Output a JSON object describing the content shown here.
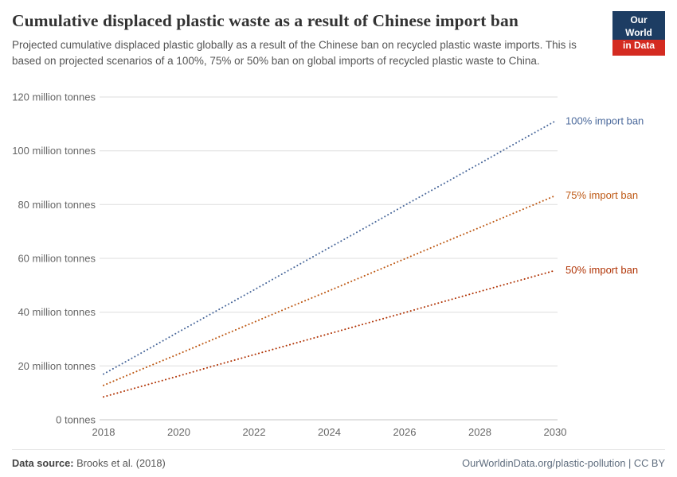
{
  "header": {
    "title": "Cumulative displaced plastic waste as a result of Chinese import ban",
    "subtitle": "Projected cumulative displaced plastic globally as a result of the Chinese ban on recycled plastic waste imports. This is based on projected scenarios of a 100%, 75% or 50% ban on global imports of recycled plastic waste to China.",
    "logo": {
      "line1": "Our World",
      "line2": "in Data",
      "bg_color": "#1d3d63",
      "accent_color": "#d42b21"
    }
  },
  "chart_data": {
    "type": "line",
    "title": "Cumulative displaced plastic waste as a result of Chinese import ban",
    "line_style": "dotted",
    "grid": true,
    "legend_position": "end-of-line-labels",
    "x": [
      2018,
      2019,
      2020,
      2021,
      2022,
      2023,
      2024,
      2025,
      2026,
      2027,
      2028,
      2029,
      2030
    ],
    "x_ticks": [
      2018,
      2020,
      2022,
      2024,
      2026,
      2028,
      2030
    ],
    "xlim": [
      2018,
      2030
    ],
    "ylim": [
      0,
      120
    ],
    "xlabel": "",
    "ylabel": "",
    "y_ticks": [
      {
        "value": 0,
        "label": "0 tonnes"
      },
      {
        "value": 20,
        "label": "20 million tonnes"
      },
      {
        "value": 40,
        "label": "40 million tonnes"
      },
      {
        "value": 60,
        "label": "60 million tonnes"
      },
      {
        "value": 80,
        "label": "80 million tonnes"
      },
      {
        "value": 100,
        "label": "100 million tonnes"
      },
      {
        "value": 120,
        "label": "120 million tonnes"
      }
    ],
    "series": [
      {
        "name": "100% import ban",
        "color": "#4c6a9c",
        "values": [
          17.0,
          24.8,
          32.7,
          40.5,
          48.3,
          56.2,
          64.0,
          71.8,
          79.7,
          87.5,
          95.3,
          103.2,
          111.0
        ]
      },
      {
        "name": "75% import ban",
        "color": "#be5915",
        "values": [
          12.8,
          18.7,
          24.5,
          30.4,
          36.3,
          42.2,
          48.0,
          53.9,
          59.8,
          65.7,
          71.5,
          77.4,
          83.3
        ]
      },
      {
        "name": "50% import ban",
        "color": "#b13507",
        "values": [
          8.5,
          12.4,
          16.3,
          20.3,
          24.2,
          28.1,
          32.0,
          35.9,
          39.8,
          43.8,
          47.7,
          51.6,
          55.5
        ]
      }
    ],
    "colors": {
      "grid": "#dddddd",
      "baseline": "#c4c4c4",
      "tick_text": "#666666"
    }
  },
  "footer": {
    "source_label": "Data source:",
    "source_value": "Brooks et al. (2018)",
    "attribution": "OurWorldinData.org/plastic-pollution | CC BY"
  }
}
